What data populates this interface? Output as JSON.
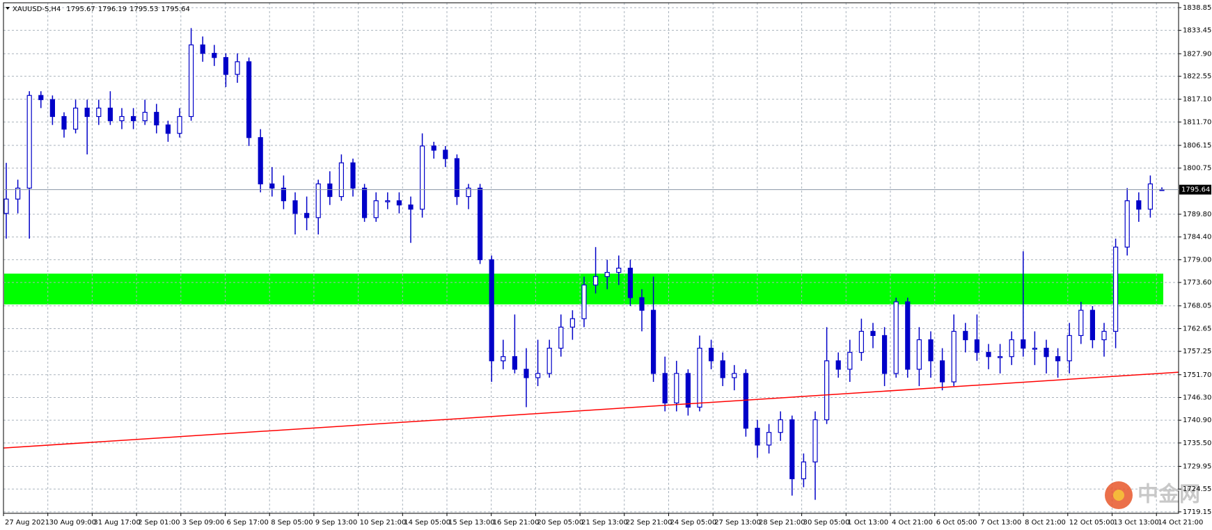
{
  "chart_data": {
    "type": "candlestick",
    "symbol": "XAUUSD-S,H4",
    "ylim": [
      1718.8,
      1840
    ],
    "yticks": [
      1838.85,
      1833.45,
      {
        "value": 1827.9,
        "label": "1827.90"
      },
      1822.55,
      {
        "value": 1817.1,
        "label": "1817.10"
      },
      {
        "value": 1811.7,
        "label": "1811.70"
      },
      1806.15,
      1800.75,
      {
        "value": 1789.8,
        "label": "1789.80"
      },
      {
        "value": 1784.4,
        "label": "1784.40"
      },
      {
        "value": 1779,
        "label": "1779.00"
      },
      {
        "value": 1773.6,
        "label": "1773.60"
      },
      1768.05,
      1762.65,
      1757.25,
      {
        "value": 1751.7,
        "label": "1751.70"
      },
      {
        "value": 1746.3,
        "label": "1746.30"
      },
      {
        "value": 1740.9,
        "label": "1740.90"
      },
      {
        "value": 1735.5,
        "label": "1735.50"
      },
      1729.95,
      1724.55,
      1719.15
    ],
    "xlabels": [
      "27 Aug 2021",
      "30 Aug 09:00",
      "31 Aug 17:00",
      "2 Sep 01:00",
      "3 Sep 09:00",
      "6 Sep 17:00",
      "8 Sep 05:00",
      "9 Sep 13:00",
      "10 Sep 21:00",
      "14 Sep 05:00",
      "15 Sep 13:00",
      "16 Sep 21:00",
      "20 Sep 05:00",
      "21 Sep 13:00",
      "22 Sep 21:00",
      "24 Sep 05:00",
      "27 Sep 13:00",
      "28 Sep 21:00",
      "30 Sep 05:00",
      "1 Oct 13:00",
      "4 Oct 21:00",
      "6 Oct 05:00",
      "7 Oct 13:00",
      "8 Oct 21:00",
      "12 Oct 05:00",
      "13 Oct 13:00",
      "14 Oct 21:00"
    ],
    "color": "#0000c8",
    "grid": true,
    "zone": {
      "from": 1768.4,
      "to": 1775.7,
      "color": "#00ff00"
    },
    "trendline": {
      "from": 1734.3,
      "to": 1752.3,
      "color": "#ff0000"
    },
    "watermark": "中金网",
    "ohlc": [
      [
        1790,
        1802,
        1784,
        1793.4
      ],
      [
        1793.4,
        1798,
        1790,
        1796
      ],
      [
        1796,
        1819,
        1784,
        1818
      ],
      [
        1818,
        1819,
        1815,
        1817
      ],
      [
        1817,
        1818,
        1811,
        1813
      ],
      [
        1813,
        1814,
        1808,
        1810
      ],
      [
        1810,
        1817,
        1809,
        1815
      ],
      [
        1815,
        1817,
        1804,
        1813
      ],
      [
        1813,
        1817,
        1811,
        1815
      ],
      [
        1815,
        1819,
        1811,
        1812
      ],
      [
        1812,
        1815,
        1810,
        1813
      ],
      [
        1813,
        1815,
        1810,
        1812
      ],
      [
        1812,
        1817,
        1811,
        1814
      ],
      [
        1814,
        1816,
        1809,
        1811
      ],
      [
        1811,
        1812,
        1807,
        1809
      ],
      [
        1809,
        1815,
        1808,
        1813
      ],
      [
        1813,
        1834,
        1812,
        1830
      ],
      [
        1830,
        1832,
        1826,
        1828
      ],
      [
        1828,
        1830,
        1825,
        1827
      ],
      [
        1827,
        1828,
        1820,
        1823
      ],
      [
        1823,
        1828,
        1821,
        1826
      ],
      [
        1826,
        1827,
        1806,
        1808
      ],
      [
        1808,
        1810,
        1795,
        1797
      ],
      [
        1797,
        1801,
        1794,
        1796
      ],
      [
        1796,
        1799,
        1791,
        1793
      ],
      [
        1793,
        1795,
        1785,
        1790
      ],
      [
        1790,
        1794,
        1786,
        1789
      ],
      [
        1789,
        1798,
        1785,
        1797
      ],
      [
        1797,
        1800,
        1792,
        1794
      ],
      [
        1794,
        1804,
        1793,
        1802
      ],
      [
        1802,
        1803,
        1794,
        1796
      ],
      [
        1796,
        1797,
        1788,
        1789
      ],
      [
        1789,
        1795,
        1788,
        1793
      ],
      [
        1793,
        1795,
        1791,
        1793
      ],
      [
        1793,
        1795,
        1790,
        1792
      ],
      [
        1792,
        1794,
        1783,
        1791
      ],
      [
        1791,
        1809,
        1789,
        1806
      ],
      [
        1806,
        1807,
        1803,
        1805
      ],
      [
        1805,
        1806,
        1801,
        1803
      ],
      [
        1803,
        1804,
        1792,
        1794
      ],
      [
        1794,
        1797,
        1791,
        1796
      ],
      [
        1796,
        1797,
        1778,
        1779
      ],
      [
        1779,
        1780,
        1750,
        1755
      ],
      [
        1755,
        1760,
        1753,
        1756
      ],
      [
        1756,
        1766,
        1752,
        1753
      ],
      [
        1753,
        1758,
        1744,
        1751
      ],
      [
        1751,
        1760,
        1749,
        1752
      ],
      [
        1752,
        1760,
        1751,
        1758
      ],
      [
        1758,
        1766,
        1756,
        1763
      ],
      [
        1763,
        1767,
        1760,
        1765
      ],
      [
        1765,
        1775,
        1763,
        1773
      ],
      [
        1773,
        1782,
        1771,
        1775
      ],
      [
        1775,
        1779,
        1772,
        1776
      ],
      [
        1776,
        1780,
        1773,
        1777
      ],
      [
        1777,
        1779,
        1768,
        1770
      ],
      [
        1770,
        1772,
        1762,
        1767
      ],
      [
        1767,
        1775,
        1750,
        1752
      ],
      [
        1752,
        1756,
        1743,
        1745
      ],
      [
        1745,
        1755,
        1743,
        1752
      ],
      [
        1752,
        1753,
        1742,
        1744
      ],
      [
        1744,
        1761,
        1743,
        1758
      ],
      [
        1758,
        1760,
        1753,
        1755
      ],
      [
        1755,
        1757,
        1749,
        1751
      ],
      [
        1751,
        1754,
        1748,
        1752
      ],
      [
        1752,
        1753,
        1737,
        1739
      ],
      [
        1739,
        1741,
        1732,
        1735
      ],
      [
        1735,
        1740,
        1733,
        1738
      ],
      [
        1738,
        1743,
        1736,
        1741
      ],
      [
        1741,
        1742,
        1723,
        1727
      ],
      [
        1727,
        1733,
        1725,
        1731
      ],
      [
        1731,
        1743,
        1722,
        1741
      ],
      [
        1741,
        1763,
        1740,
        1755
      ],
      [
        1755,
        1757,
        1751,
        1753
      ],
      [
        1753,
        1760,
        1750,
        1757
      ],
      [
        1757,
        1765,
        1755,
        1762
      ],
      [
        1762,
        1764,
        1758,
        1761
      ],
      [
        1761,
        1763,
        1749,
        1752
      ],
      [
        1752,
        1770,
        1751,
        1769
      ],
      [
        1769,
        1770,
        1751,
        1753
      ],
      [
        1753,
        1763,
        1749,
        1760
      ],
      [
        1760,
        1762,
        1751,
        1755
      ],
      [
        1755,
        1758,
        1748,
        1750
      ],
      [
        1750,
        1766,
        1749,
        1762
      ],
      [
        1762,
        1764,
        1757,
        1760
      ],
      [
        1760,
        1766,
        1755,
        1757
      ],
      [
        1757,
        1759,
        1753,
        1756
      ],
      [
        1756,
        1759,
        1752,
        1756
      ],
      [
        1756,
        1762,
        1754,
        1760
      ],
      [
        1760,
        1781,
        1756,
        1758
      ],
      [
        1758,
        1762,
        1754,
        1758
      ],
      [
        1758,
        1760,
        1752,
        1756
      ],
      [
        1756,
        1758,
        1751,
        1755
      ],
      [
        1755,
        1764,
        1752,
        1761
      ],
      [
        1761,
        1769,
        1759,
        1767
      ],
      [
        1767,
        1768,
        1758,
        1760
      ],
      [
        1760,
        1764,
        1756,
        1762
      ],
      [
        1762,
        1784,
        1758,
        1782
      ],
      [
        1782,
        1796,
        1780,
        1793
      ],
      [
        1793,
        1795,
        1788,
        1791
      ],
      [
        1791,
        1799,
        1789,
        1797
      ],
      [
        1795.67,
        1796.19,
        1795.53,
        1795.64
      ]
    ]
  }
}
